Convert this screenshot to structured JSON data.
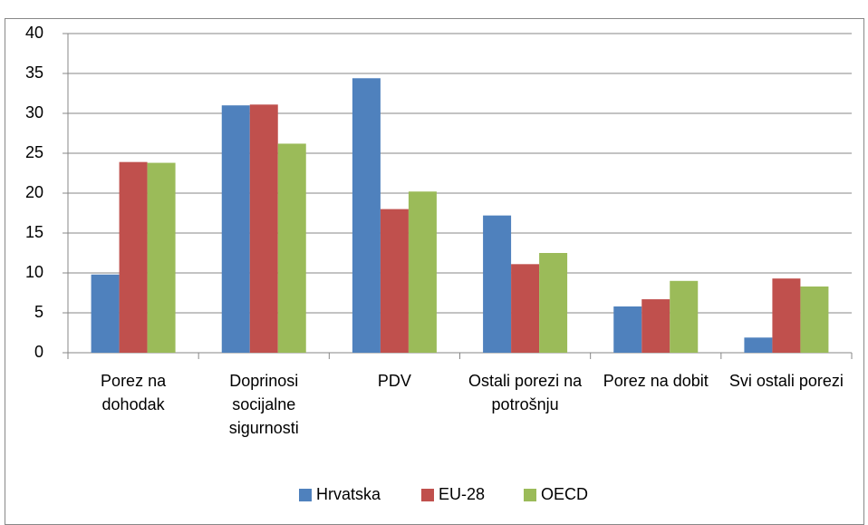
{
  "chart_data": {
    "type": "bar",
    "categories": [
      "Porez na dohodak",
      "Doprinosi socijalne sigurnosti",
      "PDV",
      "Ostali porezi na potrošnju",
      "Porez na dobit",
      "Svi ostali porezi"
    ],
    "series": [
      {
        "name": "Hrvatska",
        "color": "#4f81bd",
        "values": [
          9.8,
          31,
          34.4,
          17.2,
          5.8,
          1.9
        ]
      },
      {
        "name": "EU-28",
        "color": "#c0504d",
        "values": [
          23.9,
          31.1,
          18,
          11.1,
          6.7,
          9.3
        ]
      },
      {
        "name": "OECD",
        "color": "#9bbb59",
        "values": [
          23.8,
          26.2,
          20.2,
          12.5,
          9,
          8.3
        ]
      }
    ],
    "ylim": [
      0,
      40
    ],
    "yticks": [
      0,
      5,
      10,
      15,
      20,
      25,
      30,
      35,
      40
    ],
    "grid": true,
    "legend": "bottom"
  }
}
